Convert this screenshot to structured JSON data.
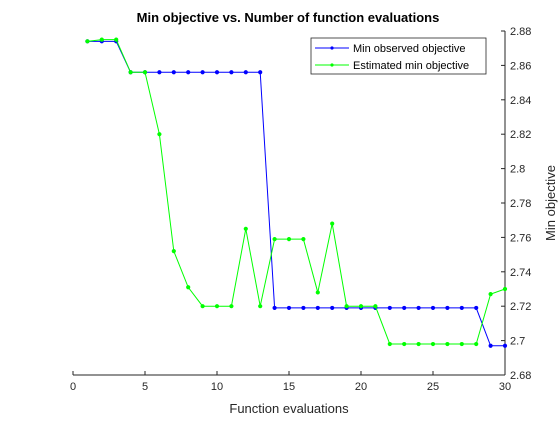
{
  "chart_data": {
    "type": "line",
    "title": "Min objective vs. Number of function evaluations",
    "xlabel": "Function evaluations",
    "ylabel": "Min objective",
    "xlim": [
      0,
      30
    ],
    "ylim": [
      2.68,
      2.88
    ],
    "xticks": [
      "0",
      "5",
      "10",
      "15",
      "20",
      "25",
      "30"
    ],
    "yticks": [
      "2.68",
      "2.7",
      "2.72",
      "2.74",
      "2.76",
      "2.78",
      "2.8",
      "2.82",
      "2.84",
      "2.86",
      "2.88"
    ],
    "y_axis_side": "right",
    "grid": false,
    "legend_position": "top-right",
    "x": [
      1,
      2,
      3,
      4,
      5,
      6,
      7,
      8,
      9,
      10,
      11,
      12,
      13,
      14,
      15,
      16,
      17,
      18,
      19,
      20,
      21,
      22,
      23,
      24,
      25,
      26,
      27,
      28,
      29,
      30
    ],
    "series": [
      {
        "name": "Min observed objective",
        "color": "#0000ff",
        "values": [
          2.874,
          2.874,
          2.874,
          2.856,
          2.856,
          2.856,
          2.856,
          2.856,
          2.856,
          2.856,
          2.856,
          2.856,
          2.856,
          2.719,
          2.719,
          2.719,
          2.719,
          2.719,
          2.719,
          2.719,
          2.719,
          2.719,
          2.719,
          2.719,
          2.719,
          2.719,
          2.719,
          2.719,
          2.697,
          2.697
        ]
      },
      {
        "name": "Estimated min objective",
        "color": "#00ff00",
        "values": [
          2.874,
          2.875,
          2.875,
          2.856,
          2.856,
          2.82,
          2.752,
          2.731,
          2.72,
          2.72,
          2.72,
          2.765,
          2.72,
          2.759,
          2.759,
          2.759,
          2.728,
          2.768,
          2.72,
          2.72,
          2.72,
          2.698,
          2.698,
          2.698,
          2.698,
          2.698,
          2.698,
          2.698,
          2.727,
          2.73
        ]
      }
    ]
  }
}
